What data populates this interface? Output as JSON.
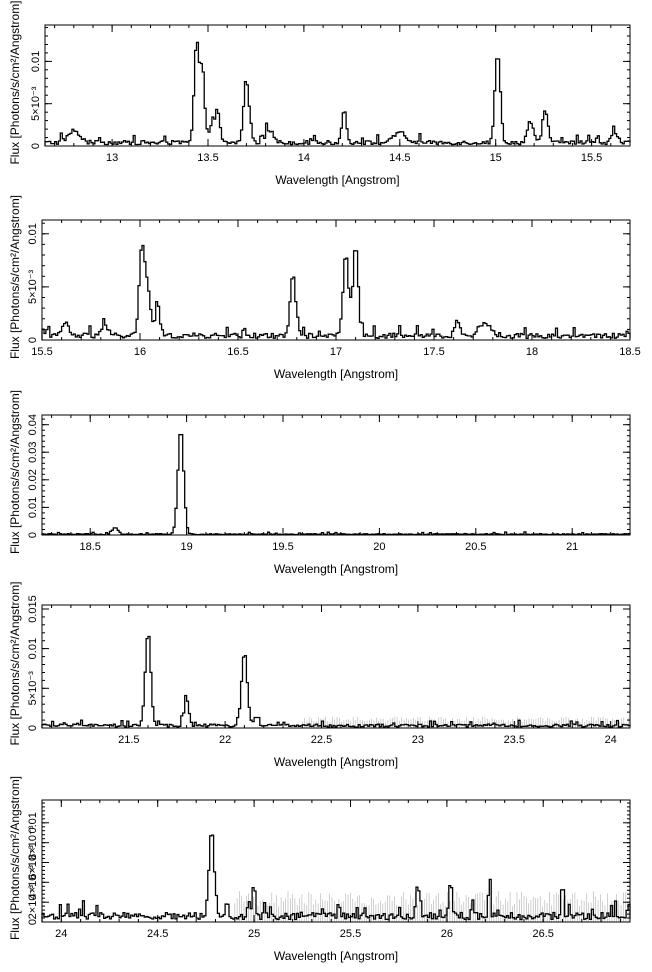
{
  "chart_data": [
    {
      "type": "line",
      "xlabel": "Wavelength [Angstrom]",
      "ylabel": "Flux [Photons/s/cm²/Angstrom]",
      "xlim": [
        12.65,
        15.7
      ],
      "ylim": [
        0,
        0.0143
      ],
      "xticks": [
        13,
        13.5,
        14,
        14.5,
        15,
        15.5
      ],
      "yticks": [
        {
          "v": 0,
          "label": "0"
        },
        {
          "v": 0.005,
          "label": "5×10⁻³"
        },
        {
          "v": 0.01,
          "label": "0.01"
        }
      ],
      "baseline": 0.0004,
      "peaks": [
        {
          "x": 12.8,
          "y": 0.0014,
          "w": 0.03
        },
        {
          "x": 13.44,
          "y": 0.0118,
          "w": 0.012
        },
        {
          "x": 13.47,
          "y": 0.0085,
          "w": 0.012
        },
        {
          "x": 13.52,
          "y": 0.0018,
          "w": 0.02
        },
        {
          "x": 13.55,
          "y": 0.0032,
          "w": 0.012
        },
        {
          "x": 13.7,
          "y": 0.0075,
          "w": 0.014
        },
        {
          "x": 13.82,
          "y": 0.0015,
          "w": 0.02
        },
        {
          "x": 14.21,
          "y": 0.0037,
          "w": 0.012
        },
        {
          "x": 14.5,
          "y": 0.0012,
          "w": 0.03
        },
        {
          "x": 15.01,
          "y": 0.0105,
          "w": 0.014
        },
        {
          "x": 15.18,
          "y": 0.0025,
          "w": 0.015
        },
        {
          "x": 15.26,
          "y": 0.0038,
          "w": 0.014
        },
        {
          "x": 15.62,
          "y": 0.0013,
          "w": 0.015
        }
      ],
      "errors": []
    },
    {
      "type": "line",
      "xlabel": "Wavelength [Angstrom]",
      "ylabel": "Flux [Photons/s/cm²/Angstrom]",
      "xlim": [
        15.5,
        18.5
      ],
      "ylim": [
        0,
        0.0113
      ],
      "xticks": [
        15.5,
        16,
        16.5,
        17,
        17.5,
        18,
        18.5
      ],
      "yticks": [
        {
          "v": 0,
          "label": "0"
        },
        {
          "v": 0.005,
          "label": "5×10⁻³"
        },
        {
          "v": 0.01,
          "label": "0.01"
        }
      ],
      "baseline": 0.0004,
      "peaks": [
        {
          "x": 15.62,
          "y": 0.0013,
          "w": 0.015
        },
        {
          "x": 15.82,
          "y": 0.0008,
          "w": 0.02
        },
        {
          "x": 16.01,
          "y": 0.0083,
          "w": 0.014
        },
        {
          "x": 16.04,
          "y": 0.0042,
          "w": 0.014
        },
        {
          "x": 16.09,
          "y": 0.0028,
          "w": 0.012
        },
        {
          "x": 16.78,
          "y": 0.0057,
          "w": 0.014
        },
        {
          "x": 17.05,
          "y": 0.0076,
          "w": 0.014
        },
        {
          "x": 17.1,
          "y": 0.0088,
          "w": 0.013
        },
        {
          "x": 17.62,
          "y": 0.0016,
          "w": 0.012
        },
        {
          "x": 17.76,
          "y": 0.0012,
          "w": 0.03
        }
      ],
      "errors": []
    },
    {
      "type": "line",
      "xlabel": "Wavelength [Angstrom]",
      "ylabel": "Flux [Photons/s/cm²/Angstrom]",
      "xlim": [
        18.25,
        21.3
      ],
      "ylim": [
        0,
        0.0435
      ],
      "xticks": [
        18.5,
        19,
        19.5,
        20,
        20.5,
        21
      ],
      "yticks": [
        {
          "v": 0,
          "label": "0"
        },
        {
          "v": 0.01,
          "label": "0.01"
        },
        {
          "v": 0.02,
          "label": "0.02"
        },
        {
          "v": 0.03,
          "label": "0.03"
        },
        {
          "v": 0.04,
          "label": "0.04"
        }
      ],
      "baseline": 0.0003,
      "peaks": [
        {
          "x": 18.63,
          "y": 0.0025,
          "w": 0.015
        },
        {
          "x": 18.97,
          "y": 0.038,
          "w": 0.015
        }
      ],
      "errors": []
    },
    {
      "type": "line",
      "xlabel": "Wavelength [Angstrom]",
      "ylabel": "Flux [Photons/s/cm²/Angstrom]",
      "xlim": [
        21.05,
        24.1
      ],
      "ylim": [
        0,
        0.0155
      ],
      "xticks": [
        21.5,
        22,
        22.5,
        23,
        23.5,
        24
      ],
      "yticks": [
        {
          "v": 0,
          "label": "0"
        },
        {
          "v": 0.005,
          "label": "5×10⁻³"
        },
        {
          "v": 0.01,
          "label": "0.01"
        },
        {
          "v": 0.015,
          "label": "0.015"
        }
      ],
      "baseline": 0.0003,
      "peaks": [
        {
          "x": 21.6,
          "y": 0.0118,
          "w": 0.014
        },
        {
          "x": 21.8,
          "y": 0.0033,
          "w": 0.012
        },
        {
          "x": 22.1,
          "y": 0.0092,
          "w": 0.015
        },
        {
          "x": 22.16,
          "y": 0.0012,
          "w": 0.012
        }
      ],
      "errors": [
        {
          "from": 22.4,
          "to": 24.1,
          "h": 0.0012
        }
      ]
    },
    {
      "type": "line",
      "xlabel": "Wavelength [Angstrom]",
      "ylabel": "Flux [Photons/s/cm²/Angstrom]",
      "xlim": [
        23.9,
        26.95
      ],
      "ylim": [
        0,
        0.0123
      ],
      "xticks": [
        24,
        24.5,
        25,
        25.5,
        26,
        26.5
      ],
      "yticks": [
        {
          "v": 0,
          "label": "0"
        },
        {
          "v": 0.002,
          "label": "2×10⁻³"
        },
        {
          "v": 0.004,
          "label": "4×10⁻³"
        },
        {
          "v": 0.006,
          "label": "6×10⁻³"
        },
        {
          "v": 0.008,
          "label": "8×10⁻³"
        },
        {
          "v": 0.01,
          "label": "0.01"
        }
      ],
      "baseline": 0.0006,
      "peaks": [
        {
          "x": 24.78,
          "y": 0.0085,
          "w": 0.014
        },
        {
          "x": 25.0,
          "y": 0.0035,
          "w": 0.008
        },
        {
          "x": 25.85,
          "y": 0.0035,
          "w": 0.008
        },
        {
          "x": 26.02,
          "y": 0.0035,
          "w": 0.008
        },
        {
          "x": 26.22,
          "y": 0.0033,
          "w": 0.006
        },
        {
          "x": 26.6,
          "y": 0.0033,
          "w": 0.006
        }
      ],
      "errors": [
        {
          "from": 24.9,
          "to": 26.95,
          "h": 0.0026
        }
      ]
    }
  ]
}
